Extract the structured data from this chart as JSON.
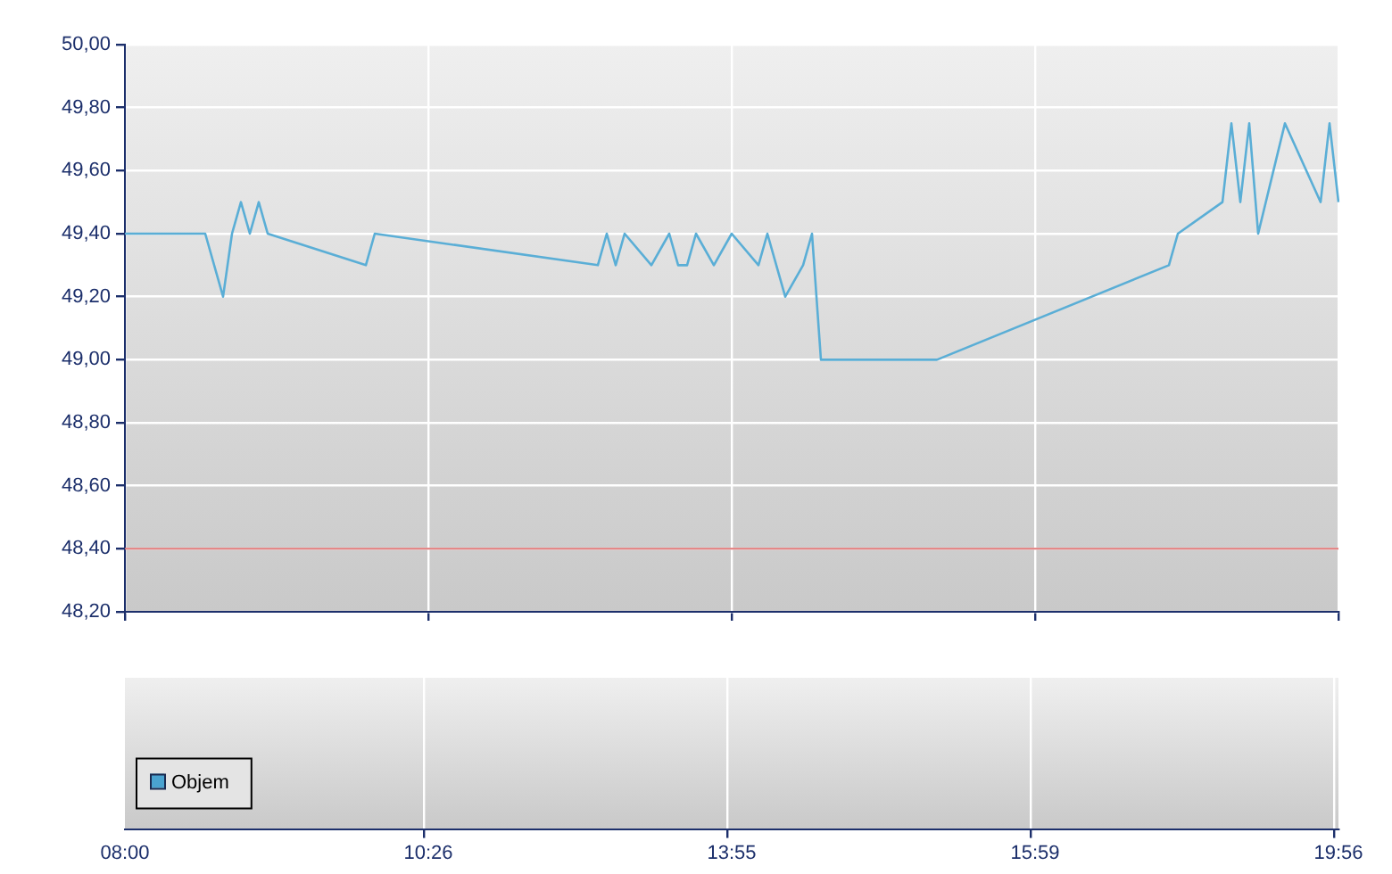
{
  "chart_data": [
    {
      "type": "line",
      "categories": [
        "08:00",
        null,
        null,
        null,
        null,
        null,
        null,
        null,
        null,
        null,
        null,
        null,
        null,
        null,
        null,
        null,
        null,
        null,
        null,
        null,
        null,
        null,
        null,
        null,
        null,
        null,
        null,
        null,
        null,
        null,
        null,
        null,
        null,
        null,
        "10:26",
        null,
        null,
        null,
        null,
        null,
        null,
        null,
        null,
        null,
        null,
        null,
        null,
        null,
        null,
        null,
        null,
        null,
        null,
        null,
        null,
        null,
        null,
        null,
        null,
        null,
        null,
        null,
        null,
        null,
        null,
        null,
        null,
        null,
        "13:55",
        null,
        null,
        null,
        null,
        null,
        null,
        null,
        null,
        null,
        null,
        null,
        null,
        null,
        null,
        null,
        null,
        null,
        null,
        null,
        null,
        null,
        null,
        null,
        null,
        null,
        null,
        null,
        null,
        null,
        null,
        null,
        null,
        null,
        "15:59",
        null,
        null,
        null,
        null,
        null,
        null,
        null,
        null,
        null,
        null,
        null,
        null,
        null,
        null,
        null,
        null,
        null,
        null,
        null,
        null,
        null,
        null,
        null,
        null,
        null,
        null,
        null,
        null,
        null,
        null,
        null,
        null,
        null,
        "19:56"
      ],
      "series": [
        {
          "color": "#5aaed6",
          "values": [
            49.4,
            null,
            null,
            null,
            null,
            null,
            null,
            null,
            null,
            49.4,
            null,
            49.2,
            49.4,
            49.5,
            49.4,
            49.5,
            49.4,
            null,
            null,
            null,
            null,
            null,
            null,
            null,
            null,
            null,
            null,
            49.3,
            49.4,
            null,
            null,
            null,
            null,
            null,
            null,
            null,
            null,
            null,
            null,
            null,
            null,
            null,
            null,
            null,
            null,
            null,
            null,
            null,
            null,
            null,
            null,
            null,
            null,
            49.3,
            49.4,
            49.3,
            49.4,
            null,
            null,
            49.3,
            null,
            49.4,
            49.3,
            49.3,
            49.4,
            null,
            49.3,
            null,
            49.4,
            null,
            null,
            49.3,
            49.4,
            49.3,
            49.2,
            null,
            49.3,
            49.4,
            49.0,
            null,
            null,
            null,
            null,
            null,
            null,
            null,
            null,
            null,
            null,
            null,
            null,
            49.0,
            null,
            null,
            null,
            null,
            null,
            null,
            null,
            null,
            null,
            null,
            null,
            null,
            null,
            null,
            null,
            null,
            null,
            null,
            null,
            null,
            null,
            null,
            null,
            null,
            null,
            49.3,
            49.4,
            null,
            null,
            null,
            null,
            49.5,
            49.75,
            49.5,
            49.75,
            49.4,
            null,
            null,
            49.75,
            null,
            null,
            null,
            49.5,
            49.75,
            49.5
          ]
        }
      ],
      "ylim": [
        48.2,
        50.0
      ],
      "yticks": [
        {
          "value": 48.2,
          "label": "48,20"
        },
        {
          "value": 48.4,
          "label": "48,40"
        },
        {
          "value": 48.6,
          "label": "48,60"
        },
        {
          "value": 48.8,
          "label": "48,80"
        },
        {
          "value": 49.0,
          "label": "49,00"
        },
        {
          "value": 49.2,
          "label": "49,20"
        },
        {
          "value": 49.4,
          "label": "49,40"
        },
        {
          "value": 49.6,
          "label": "49,60"
        },
        {
          "value": 49.8,
          "label": "49,80"
        },
        {
          "value": 50.0,
          "label": "50,00"
        }
      ],
      "ref_lines": [
        {
          "axis": "y",
          "value": 48.4,
          "color": "#e07878"
        }
      ],
      "grid": true,
      "legend": false,
      "marker": "none",
      "line_style": "solid",
      "tick_labels": "y"
    },
    {
      "type": "other",
      "series": [
        {
          "name": "Objem",
          "color": "#4aa3d0"
        }
      ],
      "legend": "bottom left"
    }
  ]
}
